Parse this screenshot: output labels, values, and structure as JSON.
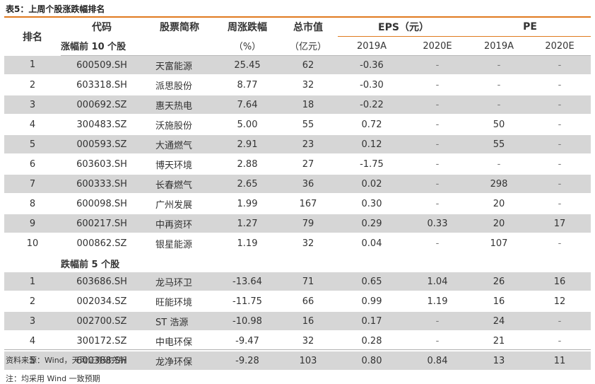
{
  "title": "表5：上周个股涨跌幅排名",
  "headers": {
    "rank": "排名",
    "code": "代码",
    "name": "股票简称",
    "weekly_change": "周涨跌幅",
    "market_cap": "总市值",
    "eps": "EPS（元）",
    "pe": "PE",
    "weekly_change_unit": "（%）",
    "market_cap_unit": "（亿元）",
    "eps_2019": "2019A",
    "eps_2020": "2020E",
    "pe_2019": "2019A",
    "pe_2020": "2020E"
  },
  "sections": [
    {
      "label": "涨幅前 10 个股",
      "rows": [
        {
          "rank": "1",
          "code": "600509.SH",
          "name": "天富能源",
          "change": "25.45",
          "cap": "62",
          "eps2019": "-0.36",
          "eps2020": "-",
          "pe2019": "-",
          "pe2020": "-"
        },
        {
          "rank": "2",
          "code": "603318.SH",
          "name": "派思股份",
          "change": "8.77",
          "cap": "32",
          "eps2019": "-0.30",
          "eps2020": "-",
          "pe2019": "-",
          "pe2020": "-"
        },
        {
          "rank": "3",
          "code": "000692.SZ",
          "name": "惠天热电",
          "change": "7.64",
          "cap": "18",
          "eps2019": "-0.22",
          "eps2020": "-",
          "pe2019": "-",
          "pe2020": "-"
        },
        {
          "rank": "4",
          "code": "300483.SZ",
          "name": "沃施股份",
          "change": "5.00",
          "cap": "55",
          "eps2019": "0.72",
          "eps2020": "-",
          "pe2019": "50",
          "pe2020": "-"
        },
        {
          "rank": "5",
          "code": "000593.SZ",
          "name": "大通燃气",
          "change": "2.91",
          "cap": "23",
          "eps2019": "0.12",
          "eps2020": "-",
          "pe2019": "55",
          "pe2020": "-"
        },
        {
          "rank": "6",
          "code": "603603.SH",
          "name": "博天环境",
          "change": "2.88",
          "cap": "27",
          "eps2019": "-1.75",
          "eps2020": "-",
          "pe2019": "-",
          "pe2020": "-"
        },
        {
          "rank": "7",
          "code": "600333.SH",
          "name": "长春燃气",
          "change": "2.65",
          "cap": "36",
          "eps2019": "0.02",
          "eps2020": "-",
          "pe2019": "298",
          "pe2020": "-"
        },
        {
          "rank": "8",
          "code": "600098.SH",
          "name": "广州发展",
          "change": "1.99",
          "cap": "167",
          "eps2019": "0.30",
          "eps2020": "-",
          "pe2019": "20",
          "pe2020": "-"
        },
        {
          "rank": "9",
          "code": "600217.SH",
          "name": "中再资环",
          "change": "1.27",
          "cap": "79",
          "eps2019": "0.29",
          "eps2020": "0.33",
          "pe2019": "20",
          "pe2020": "17"
        },
        {
          "rank": "10",
          "code": "000862.SZ",
          "name": "银星能源",
          "change": "1.19",
          "cap": "32",
          "eps2019": "0.04",
          "eps2020": "-",
          "pe2019": "107",
          "pe2020": "-"
        }
      ]
    },
    {
      "label": "跌幅前 5 个股",
      "rows": [
        {
          "rank": "1",
          "code": "603686.SH",
          "name": "龙马环卫",
          "change": "-13.64",
          "cap": "71",
          "eps2019": "0.65",
          "eps2020": "1.04",
          "pe2019": "26",
          "pe2020": "16"
        },
        {
          "rank": "2",
          "code": "002034.SZ",
          "name": "旺能环境",
          "change": "-11.75",
          "cap": "66",
          "eps2019": "0.99",
          "eps2020": "1.19",
          "pe2019": "16",
          "pe2020": "12"
        },
        {
          "rank": "3",
          "code": "002700.SZ",
          "name": "ST 浩源",
          "change": "-10.98",
          "cap": "16",
          "eps2019": "0.17",
          "eps2020": "-",
          "pe2019": "24",
          "pe2020": "-"
        },
        {
          "rank": "4",
          "code": "300172.SZ",
          "name": "中电环保",
          "change": "-9.47",
          "cap": "32",
          "eps2019": "0.28",
          "eps2020": "-",
          "pe2019": "21",
          "pe2020": "-"
        },
        {
          "rank": "5",
          "code": "600388.SH",
          "name": "龙净环保",
          "change": "-9.28",
          "cap": "103",
          "eps2019": "0.80",
          "eps2020": "0.84",
          "pe2019": "13",
          "pe2020": "11"
        }
      ]
    }
  ],
  "footnotes": {
    "source": "资料来源：Wind，天风证券研究所",
    "note": "注：均采用 Wind 一致预期"
  },
  "colors": {
    "accent_line": "#e07a1f",
    "row_shade": "#d6d6d6"
  }
}
